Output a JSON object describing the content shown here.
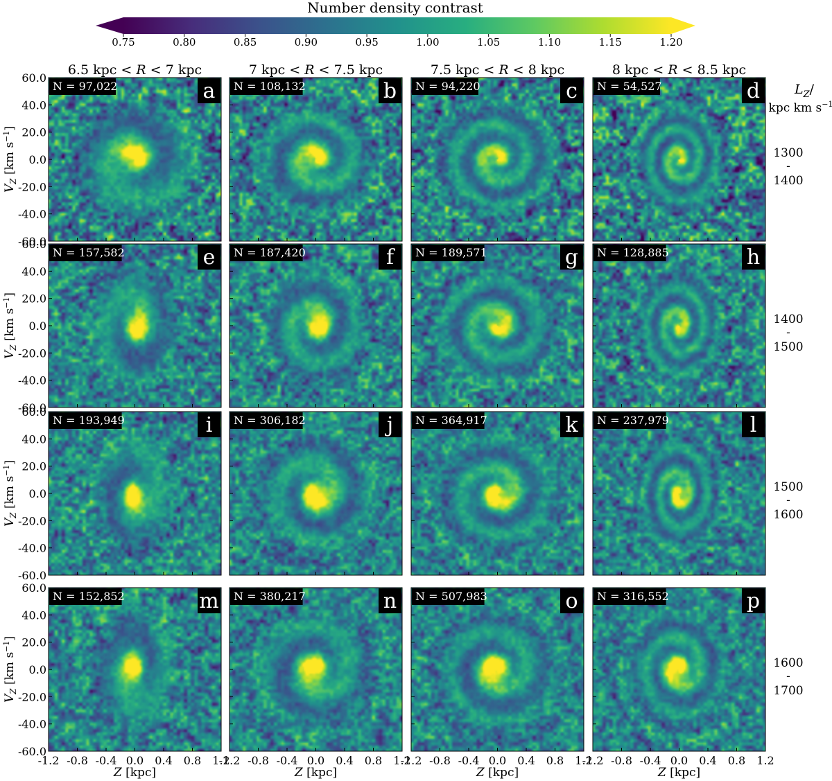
{
  "colorbar": {
    "title": "Number density contrast",
    "ticks": [
      "0.75",
      "0.80",
      "0.85",
      "0.90",
      "0.95",
      "1.00",
      "1.05",
      "1.10",
      "1.15",
      "1.20"
    ],
    "range": [
      0.75,
      1.2
    ],
    "extend": "both",
    "colormap": [
      "#440154",
      "#472d7b",
      "#3b528b",
      "#2c728e",
      "#21918c",
      "#28ae80",
      "#5ec962",
      "#addc30",
      "#fde725"
    ]
  },
  "columns": [
    {
      "pre": "6.5 kpc < ",
      "var": "R",
      "post": " < 7 kpc"
    },
    {
      "pre": "7 kpc < ",
      "var": "R",
      "post": " < 7.5 kpc"
    },
    {
      "pre": "7.5 kpc < ",
      "var": "R",
      "post": " < 8 kpc"
    },
    {
      "pre": "8 kpc < ",
      "var": "R",
      "post": " < 8.5 kpc"
    }
  ],
  "row_header": {
    "line1_var": "L",
    "line1_sub": "Z",
    "line1_post": "/",
    "line2": "kpc km s",
    "line2_sup": "−1"
  },
  "rows": [
    {
      "lz_low": "1300",
      "dash": "-",
      "lz_high": "1400"
    },
    {
      "lz_low": "1400",
      "dash": "-",
      "lz_high": "1500"
    },
    {
      "lz_low": "1500",
      "dash": "-",
      "lz_high": "1600"
    },
    {
      "lz_low": "1600",
      "dash": "-",
      "lz_high": "1700"
    }
  ],
  "axes": {
    "ylabel_var": "V",
    "ylabel_sub": "Z",
    "ylabel_units": " [km s",
    "ylabel_sup": "−1",
    "ylabel_close": "]",
    "xlabel_var": "Z",
    "xlabel_units": " [kpc]",
    "yticks": [
      "60.0",
      "40.0",
      "20.0",
      "0.0",
      "-20.0",
      "-40.0",
      "-60.0"
    ],
    "xticks": [
      "-1.2",
      "-0.8",
      "-0.4",
      "0.0",
      "0.4",
      "0.8",
      "1.2"
    ],
    "xlim": [
      -1.2,
      1.2
    ],
    "ylim": [
      -60,
      60
    ]
  },
  "chart_data": {
    "type": "heatmap",
    "title": "",
    "xlabel": "Z [kpc]",
    "ylabel": "V_Z [km s^-1]",
    "colorbar_label": "Number density contrast",
    "panels": [
      {
        "letter": "a",
        "n": "N = 97,022",
        "R": "6.5 kpc < R < 7 kpc",
        "Lz": "1300-1400",
        "tight": 0.8,
        "core": 0.9,
        "noise": 1.25,
        "stretch": 1.0
      },
      {
        "letter": "b",
        "n": "N = 108,132",
        "R": "7 kpc < R < 7.5 kpc",
        "Lz": "1300-1400",
        "tight": 1.3,
        "core": 0.8,
        "noise": 1.2,
        "stretch": 1.0
      },
      {
        "letter": "c",
        "n": "N = 94,220",
        "R": "7.5 kpc < R < 8 kpc",
        "Lz": "1300-1400",
        "tight": 1.7,
        "core": 0.6,
        "noise": 1.25,
        "stretch": 1.0
      },
      {
        "letter": "d",
        "n": "N = 54,527",
        "R": "8 kpc < R < 8.5 kpc",
        "Lz": "1300-1400",
        "tight": 2.0,
        "core": 0.5,
        "noise": 1.4,
        "stretch": 1.3
      },
      {
        "letter": "e",
        "n": "N = 157,582",
        "R": "6.5 kpc < R < 7 kpc",
        "Lz": "1400-1500",
        "tight": 0.7,
        "core": 1.0,
        "noise": 1.0,
        "stretch": 1.5
      },
      {
        "letter": "f",
        "n": "N = 187,420",
        "R": "7 kpc < R < 7.5 kpc",
        "Lz": "1400-1500",
        "tight": 1.2,
        "core": 0.9,
        "noise": 1.0,
        "stretch": 1.2
      },
      {
        "letter": "g",
        "n": "N = 189,571",
        "R": "7.5 kpc < R < 8 kpc",
        "Lz": "1400-1500",
        "tight": 1.5,
        "core": 0.7,
        "noise": 1.0,
        "stretch": 1.0
      },
      {
        "letter": "h",
        "n": "N = 128,885",
        "R": "8 kpc < R < 8.5 kpc",
        "Lz": "1400-1500",
        "tight": 1.9,
        "core": 0.6,
        "noise": 1.1,
        "stretch": 1.4
      },
      {
        "letter": "i",
        "n": "N = 193,949",
        "R": "6.5 kpc < R < 7 kpc",
        "Lz": "1500-1600",
        "tight": 0.6,
        "core": 1.0,
        "noise": 0.95,
        "stretch": 1.6
      },
      {
        "letter": "j",
        "n": "N = 306,182",
        "R": "7 kpc < R < 7.5 kpc",
        "Lz": "1500-1600",
        "tight": 1.1,
        "core": 1.0,
        "noise": 0.85,
        "stretch": 1.1
      },
      {
        "letter": "k",
        "n": "N = 364,917",
        "R": "7.5 kpc < R < 8 kpc",
        "Lz": "1500-1600",
        "tight": 1.4,
        "core": 0.9,
        "noise": 0.8,
        "stretch": 1.0
      },
      {
        "letter": "l",
        "n": "N = 237,979",
        "R": "8 kpc < R < 8.5 kpc",
        "Lz": "1500-1600",
        "tight": 1.8,
        "core": 0.8,
        "noise": 0.9,
        "stretch": 1.5
      },
      {
        "letter": "m",
        "n": "N = 152,852",
        "R": "6.5 kpc < R < 7 kpc",
        "Lz": "1600-1700",
        "tight": 0.6,
        "core": 1.0,
        "noise": 0.95,
        "stretch": 1.6
      },
      {
        "letter": "n",
        "n": "N = 380,217",
        "R": "7 kpc < R < 7.5 kpc",
        "Lz": "1600-1700",
        "tight": 1.0,
        "core": 1.0,
        "noise": 0.8,
        "stretch": 1.1
      },
      {
        "letter": "o",
        "n": "N = 507,983",
        "R": "7.5 kpc < R < 8 kpc",
        "Lz": "1600-1700",
        "tight": 1.3,
        "core": 1.0,
        "noise": 0.75,
        "stretch": 1.0
      },
      {
        "letter": "p",
        "n": "N = 316,552",
        "R": "8 kpc < R < 8.5 kpc",
        "Lz": "1600-1700",
        "tight": 1.6,
        "core": 1.0,
        "noise": 0.8,
        "stretch": 1.2
      }
    ]
  }
}
